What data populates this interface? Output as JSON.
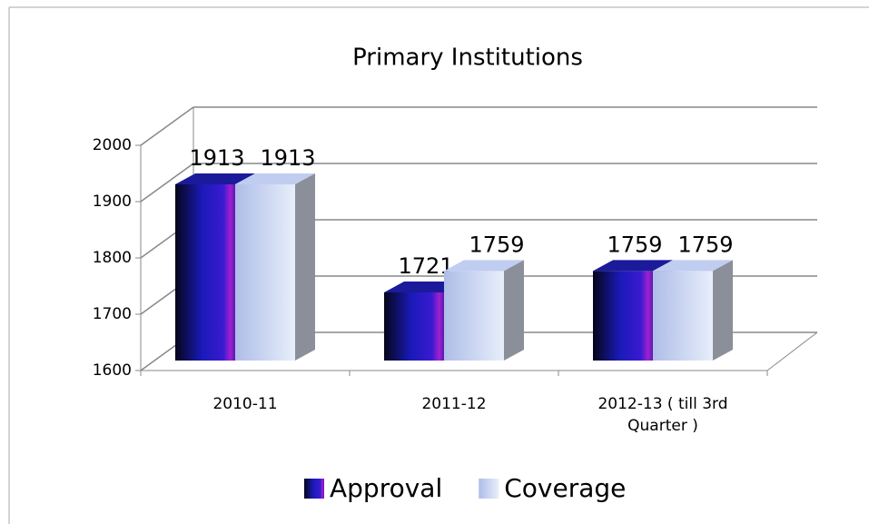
{
  "chart_data": {
    "type": "bar",
    "title": "Primary Institutions",
    "categories": [
      "2010-11",
      "2011-12",
      "2012-13 ( till 3rd Quarter )"
    ],
    "series": [
      {
        "name": "Approval",
        "color": "#2a1aa8",
        "values": [
          1913,
          1721,
          1759
        ]
      },
      {
        "name": "Coverage",
        "color": "#c8d4f2",
        "values": [
          1913,
          1759,
          1759
        ]
      }
    ],
    "ylim": [
      1600,
      2000
    ],
    "yticks": [
      1600,
      1700,
      1800,
      1900,
      2000
    ],
    "grid": true,
    "legend": "bottom"
  }
}
